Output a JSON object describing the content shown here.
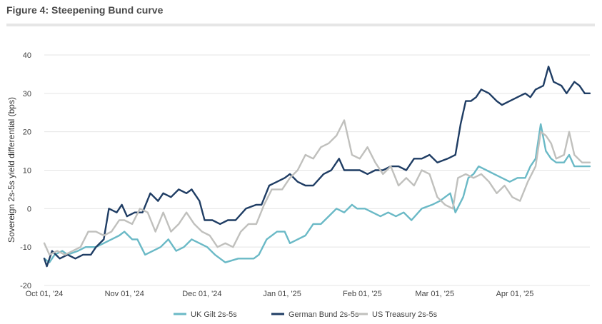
{
  "figure": {
    "title": "Figure 4: Steepening Bund curve"
  },
  "chart_data": {
    "type": "line",
    "title": "Figure 4: Steepening Bund curve",
    "xlabel": "",
    "ylabel": "Sovereign 2s-5s yield differential (bps)",
    "ylim": [
      -20,
      40
    ],
    "yticks": [
      -20,
      -10,
      0,
      10,
      20,
      30,
      40
    ],
    "xlim": [
      "2024-10-01",
      "2025-04-30"
    ],
    "xticks": [
      {
        "date": "2024-10-01",
        "label": "Oct 01, '24"
      },
      {
        "date": "2024-11-01",
        "label": "Nov 01, '24"
      },
      {
        "date": "2024-12-01",
        "label": "Dec 01, '24"
      },
      {
        "date": "2025-01-01",
        "label": "Jan 01, '25"
      },
      {
        "date": "2025-02-01",
        "label": "Feb 01, '25"
      },
      {
        "date": "2025-03-01",
        "label": "Mar 01, '25"
      },
      {
        "date": "2025-04-01",
        "label": "Apr 01, '25"
      }
    ],
    "grid": true,
    "legend_position": "bottom",
    "series": [
      {
        "name": "UK Gilt 2s-5s",
        "color": "#6ab9c6",
        "points": [
          [
            "2024-10-01",
            -13
          ],
          [
            "2024-10-03",
            -14
          ],
          [
            "2024-10-05",
            -12
          ],
          [
            "2024-10-08",
            -11
          ],
          [
            "2024-10-10",
            -12
          ],
          [
            "2024-10-14",
            -11
          ],
          [
            "2024-10-17",
            -10
          ],
          [
            "2024-10-21",
            -10
          ],
          [
            "2024-10-24",
            -9
          ],
          [
            "2024-10-27",
            -8
          ],
          [
            "2024-10-30",
            -7
          ],
          [
            "2024-11-01",
            -6
          ],
          [
            "2024-11-04",
            -8
          ],
          [
            "2024-11-06",
            -8
          ],
          [
            "2024-11-09",
            -12
          ],
          [
            "2024-11-12",
            -11
          ],
          [
            "2024-11-15",
            -10
          ],
          [
            "2024-11-18",
            -8
          ],
          [
            "2024-11-21",
            -11
          ],
          [
            "2024-11-24",
            -10
          ],
          [
            "2024-11-27",
            -8
          ],
          [
            "2024-11-30",
            -9
          ],
          [
            "2024-12-03",
            -10
          ],
          [
            "2024-12-06",
            -12
          ],
          [
            "2024-12-10",
            -14
          ],
          [
            "2024-12-15",
            -13
          ],
          [
            "2024-12-21",
            -13
          ],
          [
            "2024-12-23",
            -12
          ],
          [
            "2024-12-26",
            -8
          ],
          [
            "2024-12-30",
            -6
          ],
          [
            "2025-01-02",
            -6
          ],
          [
            "2025-01-04",
            -9
          ],
          [
            "2025-01-07",
            -8
          ],
          [
            "2025-01-10",
            -7
          ],
          [
            "2025-01-13",
            -4
          ],
          [
            "2025-01-16",
            -4
          ],
          [
            "2025-01-19",
            -2
          ],
          [
            "2025-01-22",
            0
          ],
          [
            "2025-01-25",
            -1
          ],
          [
            "2025-01-28",
            1
          ],
          [
            "2025-01-30",
            0
          ],
          [
            "2025-02-02",
            0
          ],
          [
            "2025-02-05",
            -1
          ],
          [
            "2025-02-08",
            -2
          ],
          [
            "2025-02-11",
            -1
          ],
          [
            "2025-02-14",
            -2
          ],
          [
            "2025-02-17",
            -1
          ],
          [
            "2025-02-20",
            -3
          ],
          [
            "2025-02-24",
            0
          ],
          [
            "2025-02-28",
            1
          ],
          [
            "2025-03-03",
            2
          ],
          [
            "2025-03-05",
            3
          ],
          [
            "2025-03-07",
            4
          ],
          [
            "2025-03-09",
            -1
          ],
          [
            "2025-03-12",
            3
          ],
          [
            "2025-03-14",
            8
          ],
          [
            "2025-03-16",
            9
          ],
          [
            "2025-03-18",
            11
          ],
          [
            "2025-03-21",
            10
          ],
          [
            "2025-03-24",
            9
          ],
          [
            "2025-03-27",
            8
          ],
          [
            "2025-03-30",
            7
          ],
          [
            "2025-04-02",
            8
          ],
          [
            "2025-04-05",
            8
          ],
          [
            "2025-04-07",
            11
          ],
          [
            "2025-04-09",
            13
          ],
          [
            "2025-04-11",
            22
          ],
          [
            "2025-04-13",
            15
          ],
          [
            "2025-04-15",
            13
          ],
          [
            "2025-04-17",
            12
          ],
          [
            "2025-04-20",
            12
          ],
          [
            "2025-04-22",
            14
          ],
          [
            "2025-04-24",
            11
          ],
          [
            "2025-04-27",
            11
          ],
          [
            "2025-04-30",
            11
          ]
        ]
      },
      {
        "name": "German Bund 2s-5s",
        "color": "#1f3d64",
        "points": [
          [
            "2024-10-01",
            -13
          ],
          [
            "2024-10-02",
            -15
          ],
          [
            "2024-10-04",
            -11
          ],
          [
            "2024-10-07",
            -13
          ],
          [
            "2024-10-10",
            -12
          ],
          [
            "2024-10-13",
            -13
          ],
          [
            "2024-10-16",
            -12
          ],
          [
            "2024-10-19",
            -12
          ],
          [
            "2024-10-21",
            -10
          ],
          [
            "2024-10-24",
            -8
          ],
          [
            "2024-10-26",
            0
          ],
          [
            "2024-10-29",
            -1
          ],
          [
            "2024-10-31",
            1
          ],
          [
            "2024-11-02",
            -2
          ],
          [
            "2024-11-05",
            -1
          ],
          [
            "2024-11-08",
            -1
          ],
          [
            "2024-11-11",
            4
          ],
          [
            "2024-11-14",
            2
          ],
          [
            "2024-11-16",
            4
          ],
          [
            "2024-11-19",
            3
          ],
          [
            "2024-11-22",
            5
          ],
          [
            "2024-11-25",
            4
          ],
          [
            "2024-11-27",
            5
          ],
          [
            "2024-11-30",
            2
          ],
          [
            "2024-12-02",
            -3
          ],
          [
            "2024-12-05",
            -3
          ],
          [
            "2024-12-08",
            -4
          ],
          [
            "2024-12-11",
            -3
          ],
          [
            "2024-12-14",
            -3
          ],
          [
            "2024-12-18",
            0
          ],
          [
            "2024-12-22",
            1
          ],
          [
            "2024-12-24",
            1
          ],
          [
            "2024-12-27",
            6
          ],
          [
            "2024-12-30",
            7
          ],
          [
            "2025-01-02",
            8
          ],
          [
            "2025-01-04",
            9
          ],
          [
            "2025-01-07",
            7
          ],
          [
            "2025-01-10",
            6
          ],
          [
            "2025-01-13",
            6
          ],
          [
            "2025-01-17",
            9
          ],
          [
            "2025-01-20",
            10
          ],
          [
            "2025-01-23",
            13
          ],
          [
            "2025-01-25",
            10
          ],
          [
            "2025-01-28",
            10
          ],
          [
            "2025-01-31",
            10
          ],
          [
            "2025-02-03",
            9
          ],
          [
            "2025-02-06",
            10
          ],
          [
            "2025-02-09",
            10
          ],
          [
            "2025-02-12",
            11
          ],
          [
            "2025-02-15",
            11
          ],
          [
            "2025-02-18",
            10
          ],
          [
            "2025-02-21",
            13
          ],
          [
            "2025-02-24",
            13
          ],
          [
            "2025-02-27",
            14
          ],
          [
            "2025-03-02",
            12
          ],
          [
            "2025-03-06",
            13
          ],
          [
            "2025-03-09",
            14
          ],
          [
            "2025-03-11",
            22
          ],
          [
            "2025-03-13",
            28
          ],
          [
            "2025-03-15",
            28
          ],
          [
            "2025-03-17",
            29
          ],
          [
            "2025-03-19",
            31
          ],
          [
            "2025-03-22",
            30
          ],
          [
            "2025-03-25",
            28
          ],
          [
            "2025-03-27",
            27
          ],
          [
            "2025-03-30",
            28
          ],
          [
            "2025-04-02",
            29
          ],
          [
            "2025-04-05",
            30
          ],
          [
            "2025-04-07",
            29
          ],
          [
            "2025-04-09",
            31
          ],
          [
            "2025-04-12",
            32
          ],
          [
            "2025-04-14",
            37
          ],
          [
            "2025-04-16",
            33
          ],
          [
            "2025-04-19",
            32
          ],
          [
            "2025-04-21",
            30
          ],
          [
            "2025-04-24",
            33
          ],
          [
            "2025-04-26",
            32
          ],
          [
            "2025-04-28",
            30
          ],
          [
            "2025-04-30",
            30
          ]
        ]
      },
      {
        "name": "US Treasury 2s-5s",
        "color": "#c0c0bd",
        "points": [
          [
            "2024-10-01",
            -9
          ],
          [
            "2024-10-03",
            -12
          ],
          [
            "2024-10-06",
            -11
          ],
          [
            "2024-10-09",
            -12
          ],
          [
            "2024-10-12",
            -11
          ],
          [
            "2024-10-15",
            -10
          ],
          [
            "2024-10-18",
            -6
          ],
          [
            "2024-10-21",
            -6
          ],
          [
            "2024-10-24",
            -7
          ],
          [
            "2024-10-27",
            -6
          ],
          [
            "2024-10-30",
            -3
          ],
          [
            "2024-11-01",
            -3
          ],
          [
            "2024-11-04",
            -4
          ],
          [
            "2024-11-07",
            0
          ],
          [
            "2024-11-10",
            -1
          ],
          [
            "2024-11-13",
            -6
          ],
          [
            "2024-11-16",
            -1
          ],
          [
            "2024-11-19",
            -6
          ],
          [
            "2024-11-22",
            -4
          ],
          [
            "2024-11-25",
            -1
          ],
          [
            "2024-11-28",
            -4
          ],
          [
            "2024-12-01",
            -6
          ],
          [
            "2024-12-04",
            -7
          ],
          [
            "2024-12-07",
            -10
          ],
          [
            "2024-12-10",
            -9
          ],
          [
            "2024-12-13",
            -10
          ],
          [
            "2024-12-16",
            -6
          ],
          [
            "2024-12-19",
            -4
          ],
          [
            "2024-12-22",
            -4
          ],
          [
            "2024-12-25",
            1
          ],
          [
            "2024-12-28",
            5
          ],
          [
            "2025-01-01",
            5
          ],
          [
            "2025-01-04",
            8
          ],
          [
            "2025-01-07",
            10
          ],
          [
            "2025-01-10",
            14
          ],
          [
            "2025-01-13",
            13
          ],
          [
            "2025-01-16",
            16
          ],
          [
            "2025-01-19",
            17
          ],
          [
            "2025-01-22",
            19
          ],
          [
            "2025-01-25",
            23
          ],
          [
            "2025-01-28",
            14
          ],
          [
            "2025-01-31",
            13
          ],
          [
            "2025-02-03",
            16
          ],
          [
            "2025-02-06",
            12
          ],
          [
            "2025-02-09",
            9
          ],
          [
            "2025-02-12",
            11
          ],
          [
            "2025-02-15",
            6
          ],
          [
            "2025-02-18",
            8
          ],
          [
            "2025-02-21",
            6
          ],
          [
            "2025-02-24",
            10
          ],
          [
            "2025-02-27",
            9
          ],
          [
            "2025-03-02",
            3
          ],
          [
            "2025-03-05",
            1
          ],
          [
            "2025-03-08",
            0
          ],
          [
            "2025-03-10",
            8
          ],
          [
            "2025-03-13",
            9
          ],
          [
            "2025-03-16",
            8
          ],
          [
            "2025-03-19",
            9
          ],
          [
            "2025-03-22",
            7
          ],
          [
            "2025-03-25",
            4
          ],
          [
            "2025-03-28",
            6
          ],
          [
            "2025-03-31",
            3
          ],
          [
            "2025-04-03",
            2
          ],
          [
            "2025-04-06",
            7
          ],
          [
            "2025-04-09",
            11
          ],
          [
            "2025-04-11",
            20
          ],
          [
            "2025-04-13",
            19
          ],
          [
            "2025-04-15",
            17
          ],
          [
            "2025-04-17",
            13
          ],
          [
            "2025-04-20",
            14
          ],
          [
            "2025-04-22",
            20
          ],
          [
            "2025-04-24",
            14
          ],
          [
            "2025-04-27",
            12
          ],
          [
            "2025-04-30",
            12
          ]
        ]
      }
    ]
  }
}
